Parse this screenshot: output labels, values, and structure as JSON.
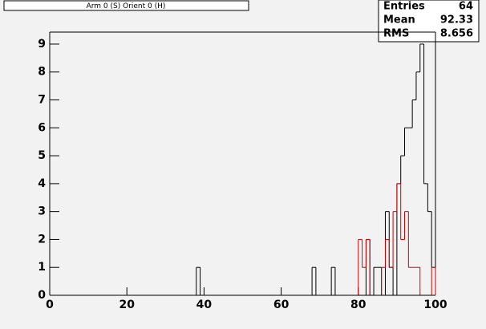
{
  "chart_data": {
    "type": "histogram",
    "title": "Arm 0 (S) Orient 0 (H)",
    "bins": [
      0,
      1,
      2,
      3,
      4,
      5,
      6,
      7,
      8,
      9,
      10,
      11,
      12,
      13,
      14,
      15,
      16,
      17,
      18,
      19,
      20,
      21,
      22,
      23,
      24,
      25,
      26,
      27,
      28,
      29,
      30,
      31,
      32,
      33,
      34,
      35,
      36,
      37,
      38,
      39,
      40,
      41,
      42,
      43,
      44,
      45,
      46,
      47,
      48,
      49,
      50,
      51,
      52,
      53,
      54,
      55,
      56,
      57,
      58,
      59,
      60,
      61,
      62,
      63,
      64,
      65,
      66,
      67,
      68,
      69,
      70,
      71,
      72,
      73,
      74,
      75,
      76,
      77,
      78,
      79,
      80,
      81,
      82,
      83,
      84,
      85,
      86,
      87,
      88,
      89,
      90,
      91,
      92,
      93,
      94,
      95,
      96,
      97,
      98,
      99,
      100
    ],
    "series": [
      {
        "color": "#000000",
        "values": [
          0,
          0,
          0,
          0,
          0,
          0,
          0,
          0,
          0,
          0,
          0,
          0,
          0,
          0,
          0,
          0,
          0,
          0,
          0,
          0,
          0,
          0,
          0,
          0,
          0,
          0,
          0,
          0,
          0,
          0,
          0,
          0,
          0,
          0,
          0,
          0,
          0,
          0,
          1,
          0,
          0,
          0,
          0,
          0,
          0,
          0,
          0,
          0,
          0,
          0,
          0,
          0,
          0,
          0,
          0,
          0,
          0,
          0,
          0,
          0,
          0,
          0,
          0,
          0,
          0,
          0,
          0,
          0,
          1,
          0,
          0,
          0,
          0,
          1,
          0,
          0,
          0,
          0,
          0,
          0,
          0,
          0,
          2,
          0,
          1,
          1,
          0,
          3,
          1,
          0,
          4,
          5,
          6,
          6,
          7,
          8,
          9,
          4,
          3,
          1
        ]
      },
      {
        "color": "#cc0000",
        "values": [
          0,
          0,
          0,
          0,
          0,
          0,
          0,
          0,
          0,
          0,
          0,
          0,
          0,
          0,
          0,
          0,
          0,
          0,
          0,
          0,
          0,
          0,
          0,
          0,
          0,
          0,
          0,
          0,
          0,
          0,
          0,
          0,
          0,
          0,
          0,
          0,
          0,
          0,
          0,
          0,
          0,
          0,
          0,
          0,
          0,
          0,
          0,
          0,
          0,
          0,
          0,
          0,
          0,
          0,
          0,
          0,
          0,
          0,
          0,
          0,
          0,
          0,
          0,
          0,
          0,
          0,
          0,
          0,
          0,
          0,
          0,
          0,
          0,
          0,
          0,
          0,
          0,
          0,
          0,
          0,
          2,
          1,
          2,
          0,
          0,
          0,
          1,
          2,
          1,
          3,
          4,
          2,
          3,
          1,
          1,
          1,
          0,
          0,
          0,
          1
        ]
      }
    ],
    "xlim": [
      0,
      100
    ],
    "xticks": [
      0,
      20,
      40,
      60,
      80,
      100
    ],
    "ylim": [
      0,
      9.43
    ],
    "yticks": [
      0,
      1,
      2,
      3,
      4,
      5,
      6,
      7,
      8,
      9
    ],
    "stats": [
      {
        "label": "Entries",
        "value": 64
      },
      {
        "label": "Mean",
        "value": 92.33
      },
      {
        "label": "RMS",
        "value": 8.656
      }
    ]
  }
}
